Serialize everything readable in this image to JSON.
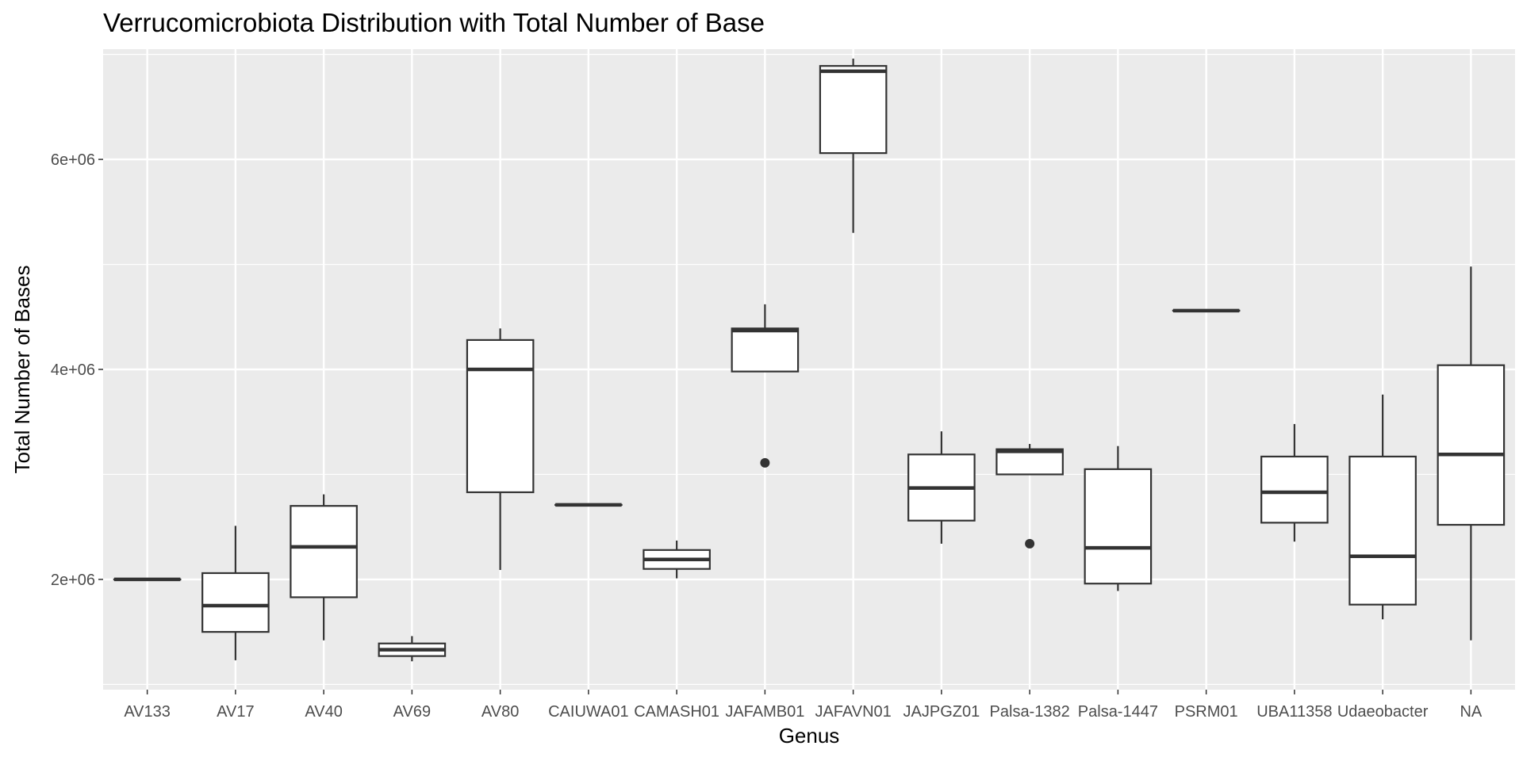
{
  "chart_data": {
    "type": "boxplot",
    "title": "Verrucomicrobiota Distribution with Total Number of Base",
    "xlabel": "Genus",
    "ylabel": "Total Number of Bases",
    "ylim": [
      950000,
      7050000
    ],
    "y_ticks": [
      2000000,
      4000000,
      6000000
    ],
    "y_tick_labels": [
      "2e+06",
      "4e+06",
      "6e+06"
    ],
    "grid": true,
    "categories": [
      "AV133",
      "AV17",
      "AV40",
      "AV69",
      "AV80",
      "CAIUWA01",
      "CAMASH01",
      "JAFAMB01",
      "JAFAVN01",
      "JAJPGZ01",
      "Palsa-1382",
      "Palsa-1447",
      "PSRM01",
      "UBA11358",
      "Udaeobacter",
      "NA"
    ],
    "boxes": [
      {
        "category": "AV133",
        "whisker_low": 2000000,
        "q1": 2000000,
        "median": 2000000,
        "q3": 2000000,
        "whisker_high": 2000000,
        "outliers": []
      },
      {
        "category": "AV17",
        "whisker_low": 1230000,
        "q1": 1500000,
        "median": 1750000,
        "q3": 2060000,
        "whisker_high": 2510000,
        "outliers": []
      },
      {
        "category": "AV40",
        "whisker_low": 1420000,
        "q1": 1830000,
        "median": 2310000,
        "q3": 2700000,
        "whisker_high": 2810000,
        "outliers": []
      },
      {
        "category": "AV69",
        "whisker_low": 1220000,
        "q1": 1270000,
        "median": 1330000,
        "q3": 1390000,
        "whisker_high": 1460000,
        "outliers": []
      },
      {
        "category": "AV80",
        "whisker_low": 2090000,
        "q1": 2830000,
        "median": 4000000,
        "q3": 4280000,
        "whisker_high": 4390000,
        "outliers": []
      },
      {
        "category": "CAIUWA01",
        "whisker_low": 2710000,
        "q1": 2710000,
        "median": 2710000,
        "q3": 2710000,
        "whisker_high": 2710000,
        "outliers": []
      },
      {
        "category": "CAMASH01",
        "whisker_low": 2010000,
        "q1": 2100000,
        "median": 2190000,
        "q3": 2280000,
        "whisker_high": 2370000,
        "outliers": []
      },
      {
        "category": "JAFAMB01",
        "whisker_low": 3980000,
        "q1": 3980000,
        "median": 4370000,
        "q3": 4390000,
        "whisker_high": 4620000,
        "outliers": [
          3110000
        ]
      },
      {
        "category": "JAFAVN01",
        "whisker_low": 5300000,
        "q1": 6060000,
        "median": 6840000,
        "q3": 6890000,
        "whisker_high": 6960000,
        "outliers": []
      },
      {
        "category": "JAJPGZ01",
        "whisker_low": 2340000,
        "q1": 2560000,
        "median": 2870000,
        "q3": 3190000,
        "whisker_high": 3410000,
        "outliers": []
      },
      {
        "category": "Palsa-1382",
        "whisker_low": 3000000,
        "q1": 3000000,
        "median": 3220000,
        "q3": 3240000,
        "whisker_high": 3290000,
        "outliers": [
          2340000
        ]
      },
      {
        "category": "Palsa-1447",
        "whisker_low": 1890000,
        "q1": 1960000,
        "median": 2300000,
        "q3": 3050000,
        "whisker_high": 3270000,
        "outliers": []
      },
      {
        "category": "PSRM01",
        "whisker_low": 4560000,
        "q1": 4560000,
        "median": 4560000,
        "q3": 4560000,
        "whisker_high": 4560000,
        "outliers": []
      },
      {
        "category": "UBA11358",
        "whisker_low": 2360000,
        "q1": 2540000,
        "median": 2830000,
        "q3": 3170000,
        "whisker_high": 3480000,
        "outliers": []
      },
      {
        "category": "Udaeobacter",
        "whisker_low": 1620000,
        "q1": 1760000,
        "median": 2220000,
        "q3": 3170000,
        "whisker_high": 3760000,
        "outliers": []
      },
      {
        "category": "NA",
        "whisker_low": 1420000,
        "q1": 2520000,
        "median": 3190000,
        "q3": 4040000,
        "whisker_high": 4980000,
        "outliers": []
      }
    ],
    "colors": {
      "panel_background": "#ebebeb",
      "grid_major": "#ffffff",
      "box_fill": "#ffffff",
      "box_stroke": "#333333",
      "tick_label": "#4d4d4d",
      "text": "#000000"
    }
  }
}
